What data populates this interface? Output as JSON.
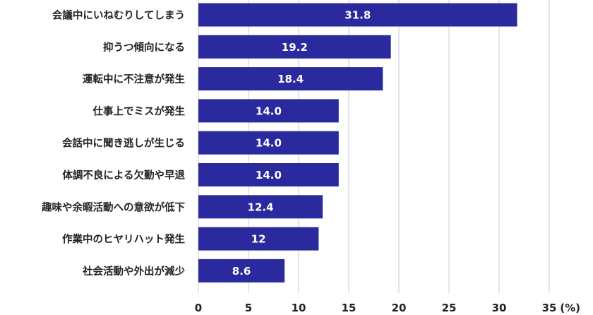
{
  "chart_data": {
    "type": "bar",
    "orientation": "horizontal",
    "categories": [
      "会議中にいねむりしてしまう",
      "抑うつ傾向になる",
      "運転中に不注意が発生",
      "仕事上でミスが発生",
      "会話中に聞き逃しが生じる",
      "体調不良による欠勤や早退",
      "趣味や余暇活動への意欲が低下",
      "作業中のヒヤリハット発生",
      "社会活動や外出が減少"
    ],
    "values": [
      31.8,
      19.2,
      18.4,
      14.0,
      14.0,
      14.0,
      12.4,
      12,
      8.6
    ],
    "data_labels": [
      "31.8",
      "19.2",
      "18.4",
      "14.0",
      "14.0",
      "14.0",
      "12.4",
      "12",
      "8.6"
    ],
    "xlim": [
      0,
      38
    ],
    "xticks": [
      0,
      5,
      10,
      15,
      20,
      25,
      30,
      35
    ],
    "unit": "(%)",
    "grid": true,
    "bar_color": "#2a2a9e",
    "label_color": "#ffffff"
  }
}
